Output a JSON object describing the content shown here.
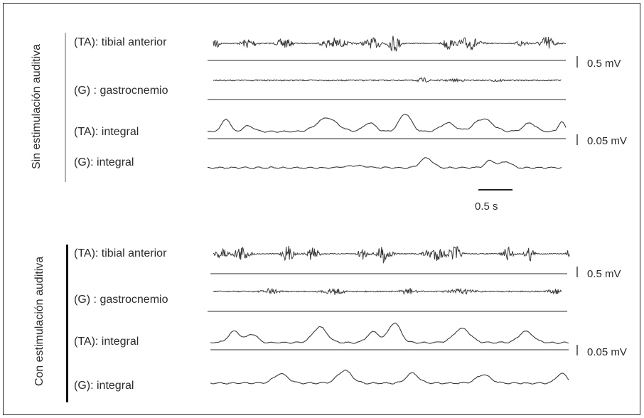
{
  "panels": [
    {
      "title": "Sin estimulación auditiva",
      "channels": [
        {
          "label": "(TA): tibial anterior"
        },
        {
          "label": "(G) : gastrocnemio"
        },
        {
          "label": "(TA): integral"
        },
        {
          "label": "(G): integral"
        }
      ],
      "scale_emg": "0.5 mV",
      "scale_integral": "0.05 mV",
      "time_scale": "0.5 s"
    },
    {
      "title": "Con estimulación auditiva",
      "channels": [
        {
          "label": "(TA): tibial anterior"
        },
        {
          "label": "(G) : gastrocnemio"
        },
        {
          "label": "(TA): integral"
        },
        {
          "label": "(G): integral"
        }
      ],
      "scale_emg": "0.5 mV",
      "scale_integral": "0.05 mV"
    }
  ],
  "colors": {
    "trace": "#3a3a3a",
    "baseline": "#555555",
    "grey_bar": "#b0b0b0",
    "black_bar": "#111111"
  }
}
